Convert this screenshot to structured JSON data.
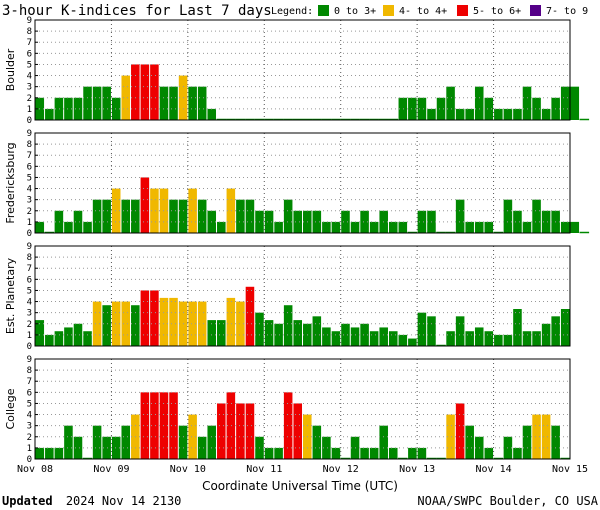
{
  "title": "3-hour K-indices for Last 7 days",
  "legend": {
    "label": "Legend:",
    "items": [
      {
        "text": "0 to 3+",
        "color": "#008800"
      },
      {
        "text": "4- to 4+",
        "color": "#F0B800"
      },
      {
        "text": "5- to 6+",
        "color": "#EE0000"
      },
      {
        "text": "7- to 9",
        "color": "#550088"
      }
    ]
  },
  "footer": {
    "updated_label": "Updated",
    "updated_value": "2024 Nov 14 2130",
    "source": "NOAA/SWPC Boulder, CO USA"
  },
  "chart_data": {
    "type": "bar",
    "x_axis_title": "Coordinate Universal Time (UTC)",
    "x_tick_labels": [
      "Nov 08",
      "Nov 09",
      "Nov 10",
      "Nov 11",
      "Nov 12",
      "Nov 13",
      "Nov 14",
      "Nov 15"
    ],
    "y_ticks": [
      0,
      1,
      2,
      3,
      4,
      5,
      6,
      7,
      8,
      9
    ],
    "ylim": [
      0,
      9
    ],
    "grid": "dotted",
    "panels": [
      {
        "ylabel": "Boulder",
        "values": [
          2,
          1,
          2,
          2,
          2,
          3,
          3,
          3,
          2,
          4,
          5,
          5,
          5,
          3,
          3,
          4,
          3,
          3,
          1,
          0,
          0,
          0,
          0,
          0,
          0,
          0,
          0,
          0,
          0,
          0,
          0,
          0,
          0,
          0,
          0,
          0,
          0,
          0,
          2,
          2,
          2,
          1,
          2,
          3,
          1,
          1,
          3,
          2,
          1,
          1,
          1,
          3,
          2,
          1,
          2,
          3,
          3,
          0
        ]
      },
      {
        "ylabel": "Fredericksburg",
        "values": [
          1,
          0,
          2,
          1,
          2,
          1,
          3,
          3,
          4,
          3,
          3,
          5,
          4,
          4,
          3,
          3,
          4,
          3,
          2,
          1,
          4,
          3,
          3,
          2,
          2,
          1,
          3,
          2,
          2,
          2,
          1,
          1,
          2,
          1,
          2,
          1,
          2,
          1,
          1,
          0,
          2,
          2,
          0,
          0,
          3,
          1,
          1,
          1,
          0,
          3,
          2,
          1,
          3,
          2,
          2,
          1,
          1,
          0
        ]
      },
      {
        "ylabel": "Est. Planetary",
        "values": [
          2.33,
          1,
          1.33,
          1.67,
          2,
          1.33,
          4,
          3.67,
          4,
          4,
          3.67,
          5,
          5,
          4.33,
          4.33,
          4,
          4,
          4,
          2.33,
          2.33,
          4.33,
          4,
          5.33,
          3,
          2.33,
          2,
          3.67,
          2.33,
          2,
          2.67,
          1.67,
          1.33,
          2,
          1.67,
          2,
          1.33,
          1.67,
          1.33,
          1,
          0.67,
          3,
          2.67,
          0,
          1.33,
          2.67,
          1.33,
          1.67,
          1.33,
          1,
          1,
          3.33,
          1.33,
          1.33,
          2,
          2.67,
          3.33
        ]
      },
      {
        "ylabel": "College",
        "values": [
          1,
          1,
          1,
          3,
          2,
          0,
          3,
          2,
          2,
          3,
          4,
          6,
          6,
          6,
          6,
          3,
          4,
          2,
          3,
          5,
          6,
          5,
          5,
          2,
          1,
          1,
          6,
          5,
          4,
          3,
          2,
          1,
          0,
          2,
          1,
          1,
          3,
          1,
          0,
          1,
          1,
          0,
          0,
          4,
          5,
          3,
          2,
          1,
          0,
          2,
          1,
          3,
          4,
          4,
          3,
          0
        ]
      }
    ]
  }
}
